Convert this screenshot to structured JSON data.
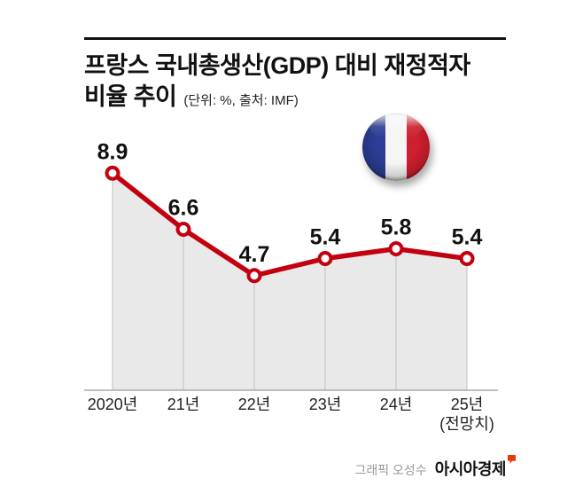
{
  "header": {
    "title_line1": "프랑스 국내총생산(GDP) 대비 재정적자",
    "title_line2": "비율 추이",
    "subtitle": "(단위: %, 출처: IMF)"
  },
  "flag": {
    "country": "france",
    "colors": {
      "blue": "#2b3d94",
      "white": "#f5f5f5",
      "red": "#cf1e2f"
    }
  },
  "chart_data": {
    "type": "line",
    "title": "프랑스 국내총생산(GDP) 대비 재정적자 비율 추이",
    "unit": "%",
    "source": "IMF",
    "categories": [
      "2020년",
      "21년",
      "22년",
      "23년",
      "24년",
      "25년"
    ],
    "category_sublabels": [
      "",
      "",
      "",
      "",
      "",
      "(전망치)"
    ],
    "values": [
      8.9,
      6.6,
      4.7,
      5.4,
      5.8,
      5.4
    ],
    "ylim": [
      0,
      10
    ],
    "line_color": "#c3000f",
    "area_color": "#e9e9e9",
    "grid_color": "#c8c8c8",
    "baseline_color": "#aaaaaa",
    "legend": "none",
    "grid": "vertical-only"
  },
  "footer": {
    "credit": "그래픽 오성수",
    "brand": "아시아경제"
  }
}
